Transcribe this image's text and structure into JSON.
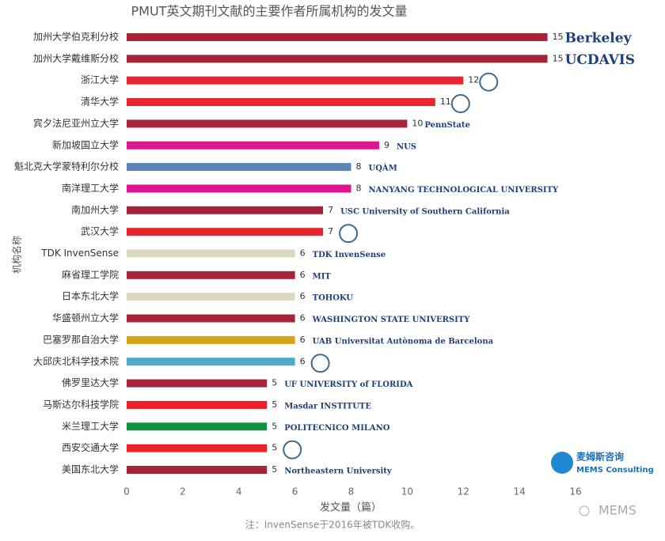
{
  "chart_data": {
    "type": "bar",
    "orientation": "horizontal",
    "title": "PMUT英文期刊文献的主要作者所属机构的发文量",
    "x_label": "发文量（篇）",
    "y_label": "机构名称",
    "note": "注：InvenSense于2016年被TDK收购。",
    "categories": [
      "加州大学伯克利分校",
      "加州大学戴维斯分校",
      "浙江大学",
      "清华大学",
      "宾夕法尼亚州立大学",
      "新加坡国立大学",
      "魁北克大学蒙特利尔分校",
      "南洋理工大学",
      "南加州大学",
      "武汉大学",
      "TDK InvenSense",
      "麻省理工学院",
      "日本东北大学",
      "华盛顿州立大学",
      "巴塞罗那自治大学",
      "大邱庆北科学技术院",
      "佛罗里达大学",
      "马斯达尔科技学院",
      "米兰理工大学",
      "西安交通大学",
      "美国东北大学"
    ],
    "values": [
      15,
      15,
      12,
      11,
      10,
      9,
      8,
      8,
      7,
      7,
      6,
      6,
      6,
      6,
      6,
      6,
      5,
      5,
      5,
      5,
      5
    ],
    "colors": [
      "#a6243a",
      "#a6243a",
      "#e8242e",
      "#e8242e",
      "#a6243a",
      "#e0148c",
      "#5b84b8",
      "#e0148c",
      "#a6243a",
      "#e8242e",
      "#dcd8c0",
      "#a6243a",
      "#dcd8c0",
      "#a6243a",
      "#d4a51a",
      "#4eabc6",
      "#a6243a",
      "#ef1e24",
      "#159146",
      "#e8242e",
      "#a6243a"
    ],
    "logo_labels": [
      "Berkeley",
      "UCDAVIS",
      null,
      null,
      "PennState",
      "NUS",
      "UQÀM",
      "NANYANG TECHNOLOGICAL UNIVERSITY",
      "USC University of Southern California",
      null,
      "TDK InvenSense",
      "MIT",
      "TOHOKU",
      "WASHINGTON STATE UNIVERSITY",
      "UAB Universitat Autònoma de Barcelona",
      null,
      "UF UNIVERSITY of FLORIDA",
      "Masdar INSTITUTE",
      "POLITECNICO MILANO",
      null,
      "Northeastern University"
    ],
    "xlim": [
      0,
      16
    ],
    "xticks": [
      0,
      2,
      4,
      6,
      8,
      10,
      12,
      14,
      16
    ],
    "brand": [
      "麦姆斯咨询",
      "MEMS Consulting"
    ],
    "watermark": "MEMS"
  }
}
